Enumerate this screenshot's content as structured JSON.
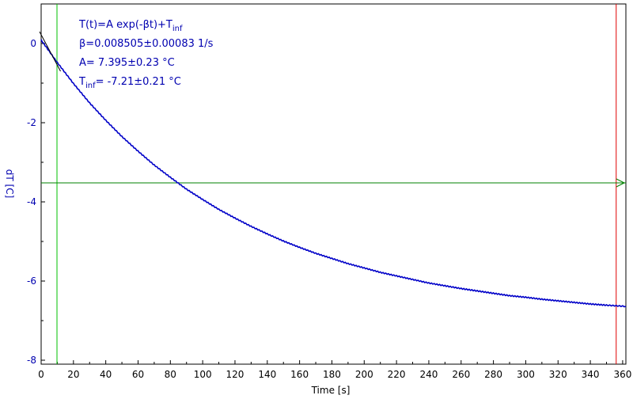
{
  "chart_data": {
    "type": "line",
    "xlabel": "Time [s]",
    "ylabel": "dT [C]",
    "xlim": [
      0,
      362
    ],
    "ylim": [
      -8.1,
      1.0
    ],
    "x_ticks": [
      0,
      20,
      40,
      60,
      80,
      100,
      120,
      140,
      160,
      180,
      200,
      220,
      240,
      260,
      280,
      300,
      320,
      340,
      360
    ],
    "y_ticks": [
      0,
      -2,
      -4,
      -6,
      -8
    ],
    "x_tick_labels": [
      "0",
      "20",
      "40",
      "60",
      "80",
      "100",
      "120",
      "140",
      "160",
      "180",
      "200",
      "220",
      "240",
      "260",
      "280",
      "300",
      "320",
      "340",
      "360"
    ],
    "y_tick_labels": [
      "0",
      "-2",
      "-4",
      "-6",
      "-8"
    ],
    "grid": false,
    "series": [
      {
        "color": "#0000c8",
        "x": [
          0,
          10,
          20,
          30,
          40,
          50,
          60,
          70,
          80,
          90,
          100,
          110,
          120,
          130,
          140,
          150,
          160,
          170,
          180,
          190,
          200,
          210,
          220,
          230,
          240,
          250,
          260,
          270,
          280,
          290,
          300,
          310,
          320,
          330,
          340,
          350,
          362
        ],
        "y": [
          0.09,
          -0.48,
          -1.01,
          -1.5,
          -1.94,
          -2.35,
          -2.72,
          -3.07,
          -3.38,
          -3.68,
          -3.94,
          -4.19,
          -4.41,
          -4.62,
          -4.81,
          -4.99,
          -5.15,
          -5.3,
          -5.43,
          -5.56,
          -5.67,
          -5.78,
          -5.87,
          -5.96,
          -6.05,
          -6.12,
          -6.19,
          -6.25,
          -6.31,
          -6.37,
          -6.41,
          -6.46,
          -6.5,
          -6.54,
          -6.58,
          -6.61,
          -6.64
        ]
      }
    ],
    "fit_line": {
      "color": "#000000",
      "x": [
        -1,
        12
      ],
      "y": [
        0.3,
        -0.7
      ]
    },
    "cursor_vertical_left": {
      "x": 9.8,
      "color": "#00c000"
    },
    "cursor_vertical_right": {
      "x": 356,
      "color": "#e00000"
    },
    "cursor_horizontal": {
      "y": -3.52,
      "color": "#008000"
    },
    "annotations": [
      {
        "main": "T(t)=A exp(-βt)+T",
        "sub": "inf",
        "tail": ""
      },
      {
        "main": "β=0.008505±0.00083 1/s",
        "sub": "",
        "tail": ""
      },
      {
        "main": "A= 7.395±0.23 °C",
        "sub": "",
        "tail": ""
      },
      {
        "main": "T",
        "sub": "inf",
        "tail": "= -7.21±0.21 °C"
      }
    ]
  },
  "colors": {
    "axis": "#000000",
    "ylabel": "#0000b0",
    "xlabel": "#000000",
    "annotation": "#0000b0"
  }
}
